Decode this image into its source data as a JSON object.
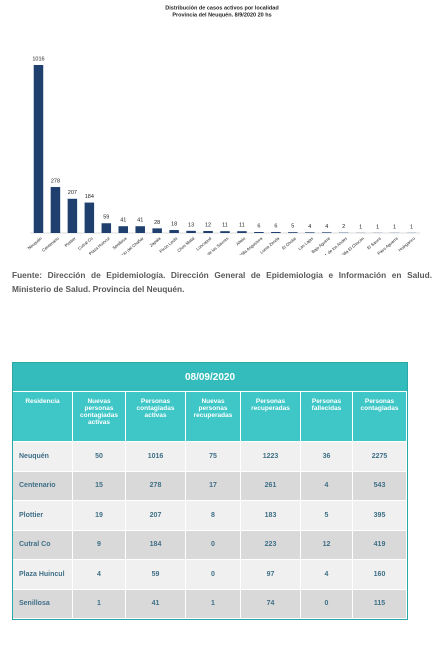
{
  "chart_data": {
    "type": "bar",
    "title": "Distribución de casos activos por localidad",
    "subtitle": "Provincia del Neuquén.  8/9/2020  20 hs",
    "categories": [
      "Neuquén",
      "Centenario",
      "Plottier",
      "Cutral Co",
      "Plaza Huincul",
      "Senillosa",
      "San Patricio del Chañar",
      "Zapala",
      "Picún Leufú",
      "Chos Malal",
      "Loncopué",
      "Rincón de los Sauces",
      "Añelo",
      "Villa Angostura",
      "Loma Zenda",
      "El Cholar",
      "Las Lajas",
      "Bajo Aguirre",
      "S.M. de los Andes",
      "Villa El Chocón",
      "El Sauce",
      "Paso Aguerre",
      "Huinganco"
    ],
    "values": [
      1016,
      278,
      207,
      184,
      59,
      41,
      41,
      28,
      18,
      13,
      12,
      11,
      11,
      6,
      6,
      5,
      4,
      4,
      2,
      1,
      1,
      1,
      1
    ],
    "color": "#1f3f6f"
  },
  "source": "Fuente: Dirección de Epidemiología. Dirección General de Epidemiologia e Información en Salud. Ministerio de Salud. Provincia del Neuquén.",
  "table": {
    "title": "08/09/2020",
    "columns": [
      "Residencia",
      "Nuevas personas contagiadas activas",
      "Personas contagiadas activas",
      "Nuevas personas recuperadas",
      "Personas recuperadas",
      "Personas fallecidas",
      "Personas contagiadas"
    ],
    "rows": [
      [
        "Neuquén",
        50,
        1016,
        75,
        1223,
        36,
        2275
      ],
      [
        "Centenario",
        15,
        278,
        17,
        261,
        4,
        543
      ],
      [
        "Plottier",
        19,
        207,
        8,
        183,
        5,
        395
      ],
      [
        "Cutral Co",
        9,
        184,
        0,
        223,
        12,
        419
      ],
      [
        "Plaza Huincul",
        4,
        59,
        0,
        97,
        4,
        160
      ],
      [
        "Senillosa",
        1,
        41,
        1,
        74,
        0,
        115
      ]
    ]
  }
}
